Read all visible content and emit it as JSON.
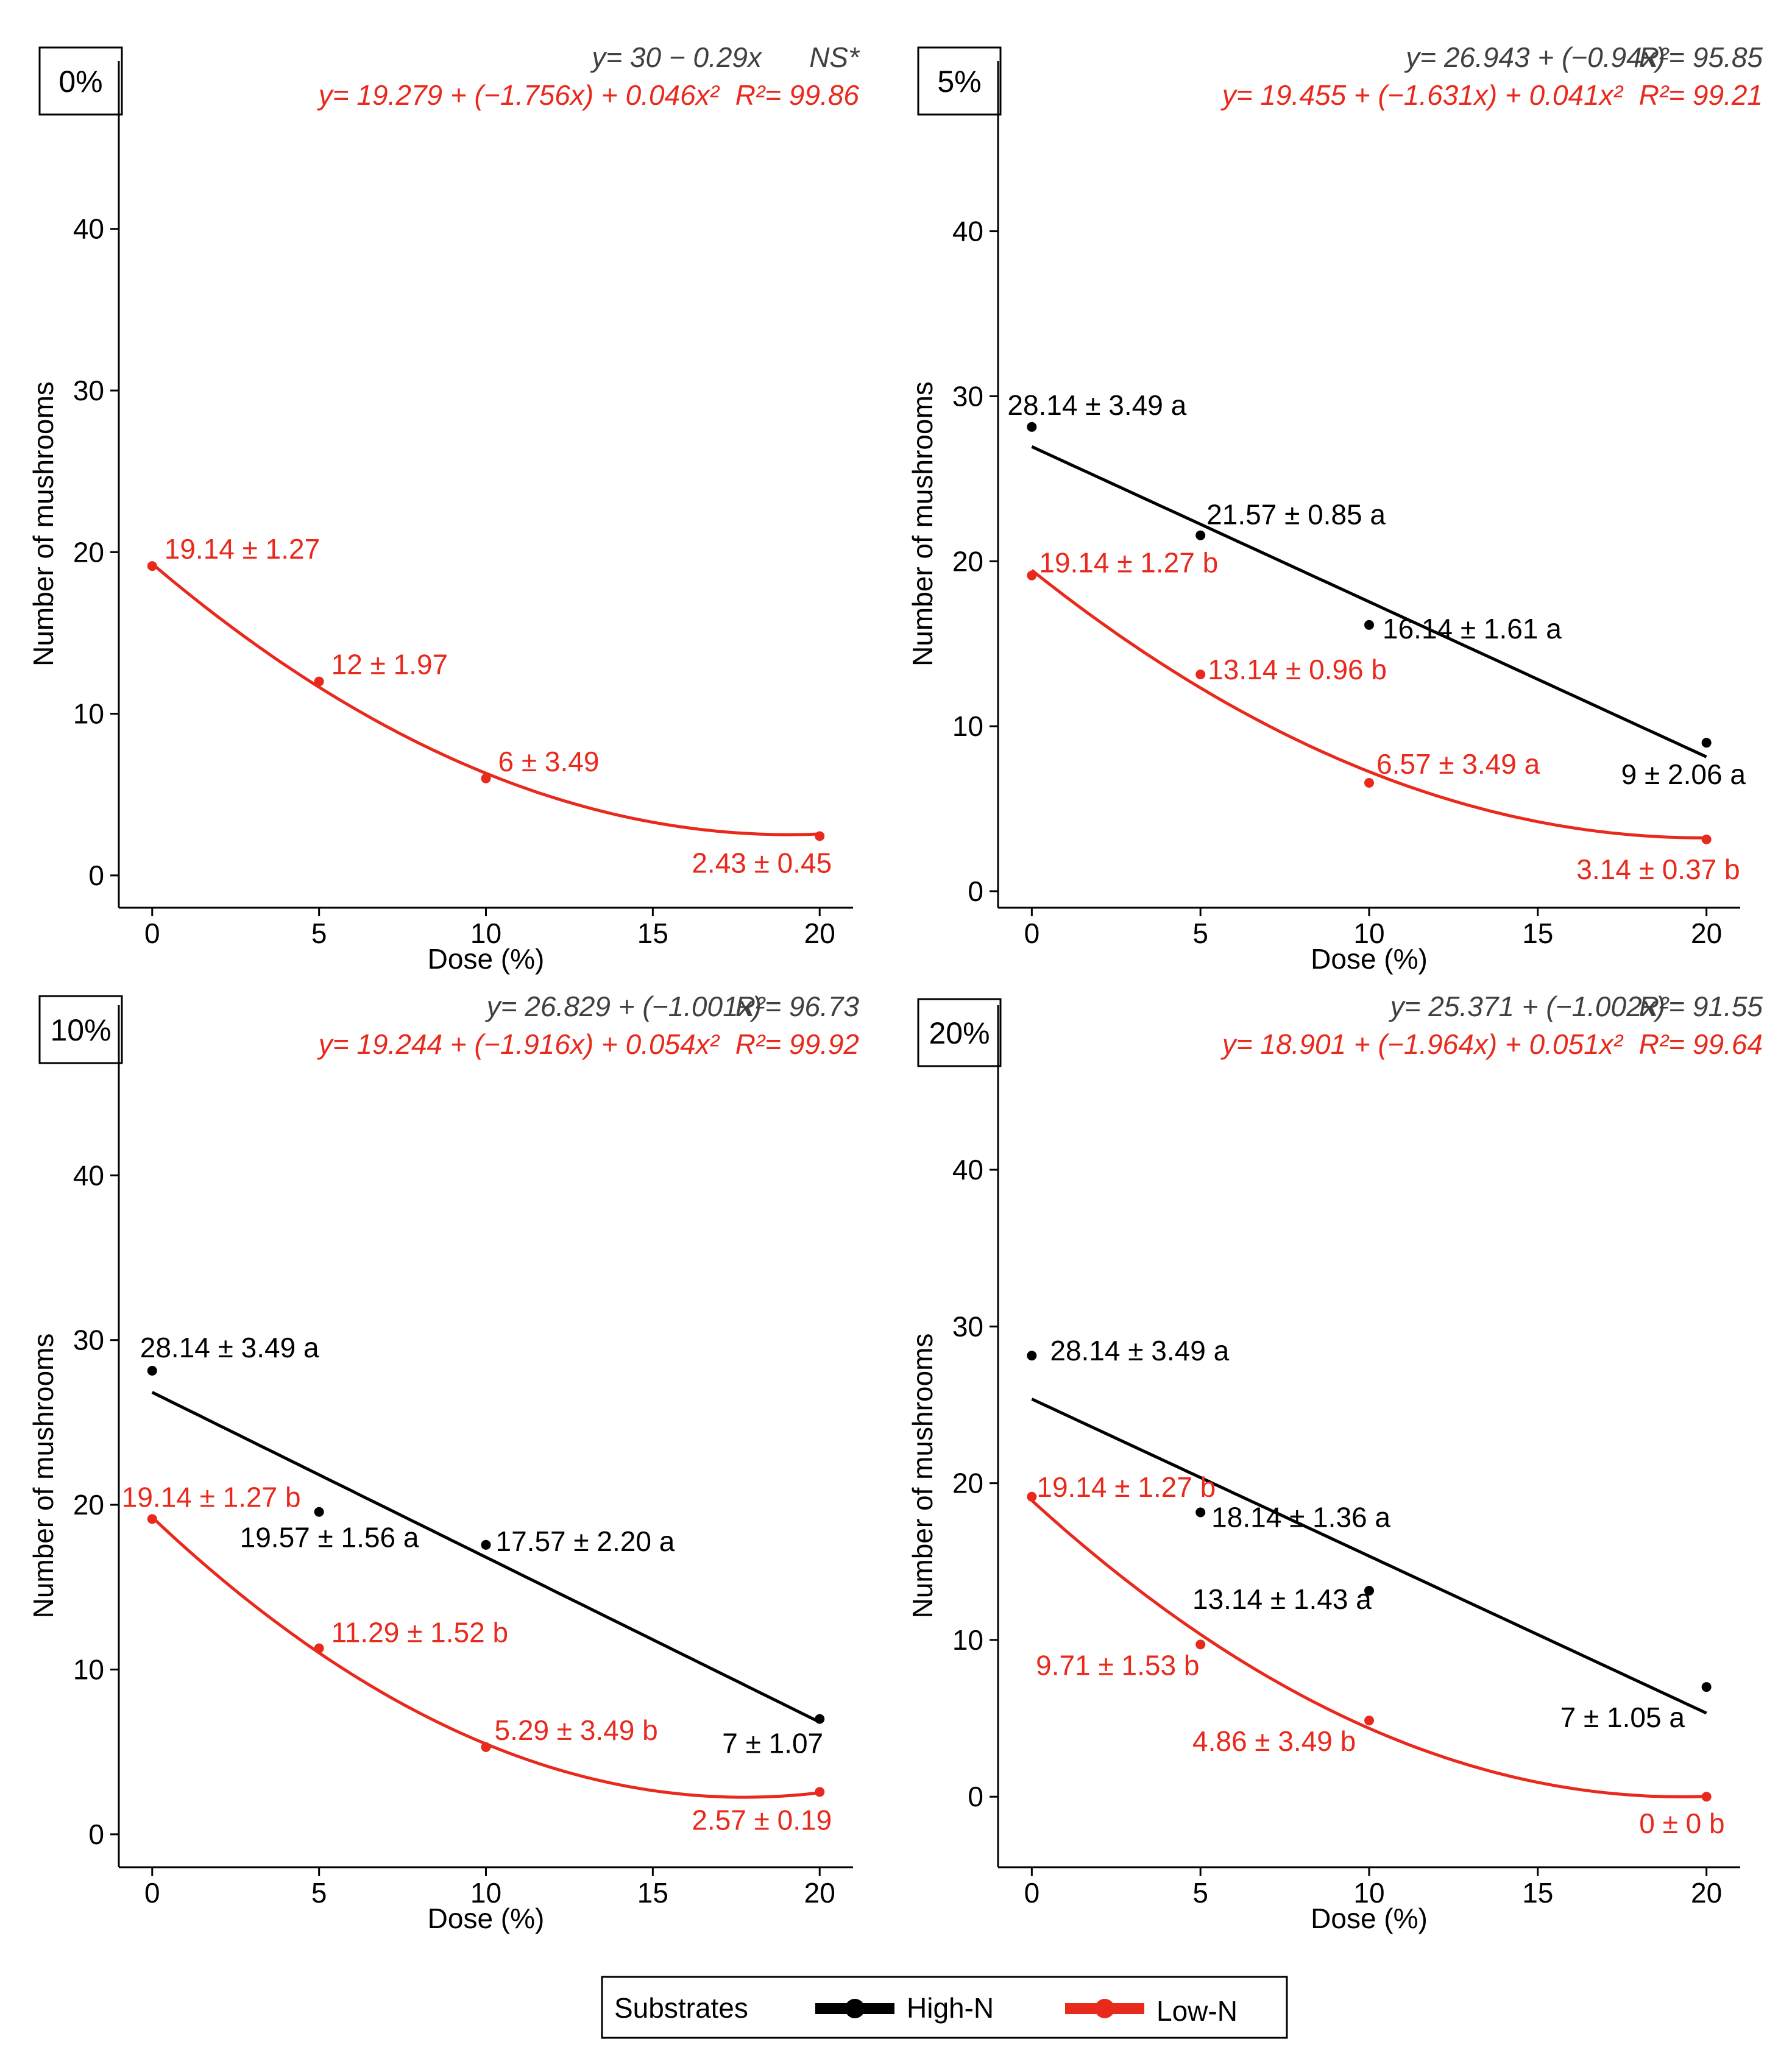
{
  "colors": {
    "high": "#000000",
    "low": "#e8291c",
    "eq_high": "#404040",
    "frame": "#000000"
  },
  "legend": {
    "title": "Substrates",
    "high_label": "High-N",
    "low_label": "Low-N"
  },
  "chart_data": [
    {
      "type": "line",
      "panel": "0%",
      "xlabel": "Dose (%)",
      "ylabel": "Number of mushrooms",
      "xlim": [
        -1,
        21
      ],
      "ylim": [
        -2,
        47
      ],
      "xticks": [
        0,
        5,
        10,
        15,
        20
      ],
      "yticks": [
        0,
        10,
        20,
        30,
        40
      ],
      "eq_high": "y= 30 − 0.29x",
      "r2_high": "NS*",
      "eq_low": "y= 19.279 + (−1.756x) + 0.046x²",
      "r2_low": "R²= 99.86",
      "series": [
        {
          "name": "Low-N",
          "x": [
            0,
            5,
            10,
            20
          ],
          "y": [
            19.14,
            12,
            6,
            2.43
          ],
          "labels": [
            "19.14 ± 1.27",
            "12 ± 1.97",
            "6 ± 3.49",
            "2.43 ± 0.45"
          ],
          "fit": [
            19.279,
            -1.756,
            0.046
          ]
        }
      ]
    },
    {
      "type": "line",
      "panel": "5%",
      "xlabel": "Dose (%)",
      "ylabel": "Number of mushrooms",
      "xlim": [
        -1,
        21
      ],
      "ylim": [
        -1,
        47
      ],
      "xticks": [
        0,
        5,
        10,
        15,
        20
      ],
      "yticks": [
        0,
        10,
        20,
        30,
        40
      ],
      "eq_high": "y= 26.943 + (−0.94x)",
      "r2_high": "R²= 95.85",
      "eq_low": "y= 19.455 + (−1.631x) + 0.041x²",
      "r2_low": "R²= 99.21",
      "series": [
        {
          "name": "High-N",
          "x": [
            0,
            5,
            10,
            20
          ],
          "y": [
            28.14,
            21.57,
            16.14,
            9
          ],
          "labels": [
            "28.14 ± 3.49 a",
            "21.57 ± 0.85 a",
            "16.14 ± 1.61 a",
            "9 ± 2.06 a"
          ],
          "fit": [
            26.943,
            -0.94,
            0
          ]
        },
        {
          "name": "Low-N",
          "x": [
            0,
            5,
            10,
            20
          ],
          "y": [
            19.14,
            13.14,
            6.57,
            3.14
          ],
          "labels": [
            "19.14 ± 1.27  b",
            "13.14 ± 0.96 b",
            "6.57 ± 3.49 a",
            "3.14 ± 0.37  b"
          ],
          "fit": [
            19.455,
            -1.631,
            0.041
          ]
        }
      ]
    },
    {
      "type": "line",
      "panel": "10%",
      "xlabel": "Dose (%)",
      "ylabel": "Number of mushrooms",
      "xlim": [
        -1,
        21
      ],
      "ylim": [
        -2,
        47
      ],
      "xticks": [
        0,
        5,
        10,
        15,
        20
      ],
      "yticks": [
        0,
        10,
        20,
        30,
        40
      ],
      "eq_high": "y= 26.829 + (−1.001x)",
      "r2_high": "R²= 96.73",
      "eq_low": "y= 19.244 + (−1.916x) + 0.054x²",
      "r2_low": "R²= 99.92",
      "series": [
        {
          "name": "High-N",
          "x": [
            0,
            5,
            10,
            20
          ],
          "y": [
            28.14,
            19.57,
            17.57,
            7
          ],
          "labels": [
            "28.14 ± 3.49 a",
            "19.57 ± 1.56  a",
            "17.57 ± 2.20  a",
            "7 ± 1.07"
          ],
          "fit": [
            26.829,
            -1.001,
            0
          ]
        },
        {
          "name": "Low-N",
          "x": [
            0,
            5,
            10,
            20
          ],
          "y": [
            19.14,
            11.29,
            5.29,
            2.57
          ],
          "labels": [
            "19.14 ± 1.27  b",
            "11.29 ± 1.52  b",
            "5.29 ± 3.49  b",
            "2.57 ± 0.19"
          ],
          "fit": [
            19.244,
            -1.916,
            0.054
          ]
        }
      ]
    },
    {
      "type": "line",
      "panel": "20%",
      "xlabel": "Dose (%)",
      "ylabel": "Number of mushrooms",
      "xlim": [
        -1,
        21
      ],
      "ylim": [
        -4.5,
        47
      ],
      "xticks": [
        0,
        5,
        10,
        15,
        20
      ],
      "yticks": [
        0,
        10,
        20,
        30,
        40
      ],
      "eq_high": "y= 25.371 + (−1.002x)",
      "r2_high": "R²= 91.55",
      "eq_low": "y= 18.901 + (−1.964x) + 0.051x²",
      "r2_low": "R²= 99.64",
      "series": [
        {
          "name": "High-N",
          "x": [
            0,
            5,
            10,
            20
          ],
          "y": [
            28.14,
            18.14,
            13.14,
            7
          ],
          "labels": [
            "28.14 ± 3.49 a",
            "18.14 ± 1.36  a",
            "13.14 ± 1.43  a",
            "7 ± 1.05  a"
          ],
          "fit": [
            25.371,
            -1.002,
            0
          ]
        },
        {
          "name": "Low-N",
          "x": [
            0,
            5,
            10,
            20
          ],
          "y": [
            19.14,
            9.71,
            4.86,
            0
          ],
          "labels": [
            "19.14 ± 1.27  b",
            "9.71 ± 1.53  b",
            "4.86 ± 3.49  b",
            "0 ± 0  b"
          ],
          "fit": [
            18.901,
            -1.964,
            0.051
          ]
        }
      ]
    }
  ]
}
